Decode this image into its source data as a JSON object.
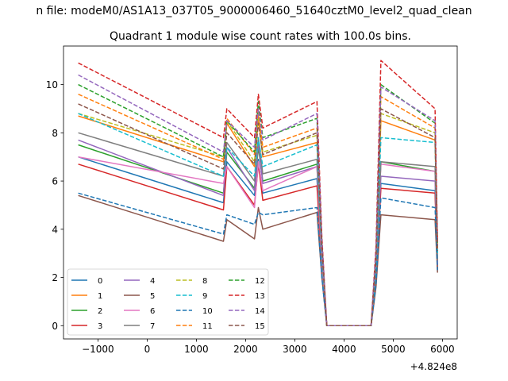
{
  "figure": {
    "suptitle": "n file: modeM0/AS1A13_037T05_9000006460_51640cztM0_level2_quad_clean"
  },
  "chart_data": {
    "type": "line",
    "title": "Quadrant 1 module wise count rates with 100.0s bins.",
    "xlabel": "",
    "ylabel": "",
    "x_offset_text": "+4.824e8",
    "xlim": [
      -1700,
      6300
    ],
    "ylim": [
      -0.55,
      11.6
    ],
    "xticks": [
      -1000,
      0,
      1000,
      2000,
      3000,
      4000,
      5000,
      6000
    ],
    "xtick_labels": [
      "−1000",
      "0",
      "1000",
      "2000",
      "3000",
      "4000",
      "5000",
      "6000"
    ],
    "yticks": [
      0,
      2,
      4,
      6,
      8,
      10
    ],
    "ytick_labels": [
      "0",
      "2",
      "4",
      "6",
      "8",
      "10"
    ],
    "grid": false,
    "legend_position": "lower-left",
    "legend_columns": 4,
    "x": [
      -1400,
      1550,
      1620,
      2180,
      2260,
      2350,
      3450,
      3550,
      3650,
      4550,
      4650,
      4750,
      5850,
      5900
    ],
    "series": [
      {
        "name": "0",
        "color": "#1f77b4",
        "dash": "solid",
        "values": [
          7.0,
          5.1,
          6.8,
          5.4,
          6.9,
          5.5,
          6.1,
          2.5,
          0.0,
          0.0,
          2.0,
          5.9,
          5.6,
          2.6
        ]
      },
      {
        "name": "1",
        "color": "#ff7f0e",
        "dash": "solid",
        "values": [
          8.7,
          6.8,
          8.4,
          6.6,
          8.6,
          7.0,
          7.6,
          3.0,
          0.0,
          0.0,
          2.6,
          8.5,
          7.7,
          3.0
        ]
      },
      {
        "name": "2",
        "color": "#2ca02c",
        "dash": "solid",
        "values": [
          7.5,
          5.5,
          7.2,
          5.7,
          7.4,
          6.0,
          6.7,
          2.8,
          0.0,
          0.0,
          2.2,
          6.8,
          6.4,
          2.6
        ]
      },
      {
        "name": "3",
        "color": "#d62728",
        "dash": "solid",
        "values": [
          6.7,
          4.8,
          6.6,
          5.0,
          6.7,
          5.2,
          5.8,
          2.4,
          0.0,
          0.0,
          1.9,
          5.7,
          5.5,
          2.3
        ]
      },
      {
        "name": "4",
        "color": "#9467bd",
        "dash": "solid",
        "values": [
          7.7,
          5.4,
          7.4,
          5.6,
          7.6,
          5.9,
          6.6,
          2.6,
          0.0,
          0.0,
          2.1,
          6.2,
          6.0,
          2.5
        ]
      },
      {
        "name": "5",
        "color": "#8c564b",
        "dash": "solid",
        "values": [
          5.4,
          3.5,
          4.4,
          3.6,
          4.9,
          4.0,
          4.7,
          2.0,
          0.0,
          0.0,
          1.6,
          4.6,
          4.4,
          2.2
        ]
      },
      {
        "name": "6",
        "color": "#e377c2",
        "dash": "solid",
        "values": [
          7.0,
          5.9,
          6.6,
          4.9,
          6.8,
          5.6,
          6.6,
          2.6,
          0.0,
          0.0,
          2.2,
          6.7,
          6.4,
          2.6
        ]
      },
      {
        "name": "7",
        "color": "#7f7f7f",
        "dash": "solid",
        "values": [
          8.0,
          6.2,
          7.6,
          6.0,
          7.8,
          6.3,
          6.9,
          2.9,
          0.0,
          0.0,
          2.3,
          6.8,
          6.6,
          2.7
        ]
      },
      {
        "name": "8",
        "color": "#bcbd22",
        "dash": "dashed",
        "values": [
          8.8,
          7.0,
          8.5,
          6.8,
          8.8,
          7.2,
          7.9,
          3.2,
          0.0,
          0.0,
          2.8,
          8.8,
          8.0,
          3.1
        ]
      },
      {
        "name": "9",
        "color": "#17becf",
        "dash": "dashed",
        "values": [
          8.8,
          6.2,
          7.4,
          6.2,
          7.8,
          6.6,
          7.5,
          3.0,
          0.0,
          0.0,
          2.5,
          7.8,
          7.6,
          3.0
        ]
      },
      {
        "name": "10",
        "color": "#1f77b4",
        "dash": "dashed",
        "values": [
          5.5,
          3.8,
          4.6,
          4.2,
          4.7,
          4.6,
          4.9,
          2.0,
          0.0,
          0.0,
          1.7,
          5.3,
          4.9,
          2.3
        ]
      },
      {
        "name": "11",
        "color": "#ff7f0e",
        "dash": "dashed",
        "values": [
          9.6,
          6.9,
          8.6,
          7.1,
          8.9,
          7.4,
          8.2,
          3.3,
          0.0,
          0.0,
          2.9,
          9.5,
          8.2,
          3.2
        ]
      },
      {
        "name": "12",
        "color": "#2ca02c",
        "dash": "dashed",
        "values": [
          10.0,
          7.0,
          8.5,
          7.2,
          9.3,
          7.8,
          8.6,
          3.5,
          0.0,
          0.0,
          3.0,
          10.0,
          8.4,
          3.3
        ]
      },
      {
        "name": "13",
        "color": "#d62728",
        "dash": "dashed",
        "values": [
          10.9,
          7.8,
          9.0,
          7.8,
          9.6,
          8.2,
          9.3,
          3.7,
          0.0,
          0.0,
          3.3,
          11.0,
          9.0,
          3.5
        ]
      },
      {
        "name": "14",
        "color": "#9467bd",
        "dash": "dashed",
        "values": [
          10.4,
          7.2,
          8.5,
          7.4,
          9.0,
          7.7,
          8.8,
          3.5,
          0.0,
          0.0,
          3.1,
          9.9,
          8.5,
          3.3
        ]
      },
      {
        "name": "15",
        "color": "#8c564b",
        "dash": "dashed",
        "values": [
          9.2,
          6.5,
          8.0,
          6.7,
          8.4,
          7.1,
          8.0,
          3.2,
          0.0,
          0.0,
          2.7,
          9.0,
          7.8,
          3.1
        ]
      }
    ]
  }
}
